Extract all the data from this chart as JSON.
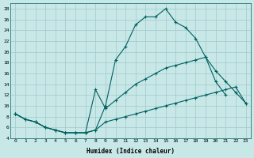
{
  "xlabel": "Humidex (Indice chaleur)",
  "bg_color": "#c8e8e8",
  "line_color": "#006060",
  "grid_color": "#a0c8c8",
  "xlim": [
    -0.5,
    23.5
  ],
  "ylim": [
    4,
    29
  ],
  "yticks": [
    4,
    6,
    8,
    10,
    12,
    14,
    16,
    18,
    20,
    22,
    24,
    26,
    28
  ],
  "xticks": [
    0,
    1,
    2,
    3,
    4,
    5,
    6,
    7,
    8,
    9,
    10,
    11,
    12,
    13,
    14,
    15,
    16,
    17,
    18,
    19,
    20,
    21,
    22,
    23
  ],
  "xtick_labels": [
    "0",
    "1",
    "2",
    "3",
    "4",
    "5",
    "6",
    "7",
    "8",
    "9",
    "10",
    "11",
    "12",
    "13",
    "14",
    "15",
    "16",
    "17",
    "18",
    "19",
    "20",
    "21",
    "22",
    "23"
  ],
  "curve_top_x": [
    0,
    1,
    2,
    3,
    4,
    5,
    6,
    7,
    8,
    9,
    10,
    11,
    12,
    13,
    14,
    15,
    16,
    17,
    18,
    19,
    20,
    21
  ],
  "curve_top_y": [
    8.5,
    7.5,
    7.0,
    6.0,
    5.5,
    5.0,
    5.0,
    5.0,
    5.5,
    10.0,
    18.5,
    21.0,
    25.0,
    26.5,
    26.5,
    28.0,
    25.5,
    24.5,
    22.5,
    19.0,
    14.5,
    12.0
  ],
  "curve_mid_x": [
    0,
    1,
    2,
    3,
    4,
    5,
    6,
    7,
    8,
    9,
    10,
    11,
    12,
    13,
    14,
    15,
    16,
    17,
    18,
    19,
    20,
    21,
    22,
    23
  ],
  "curve_mid_y": [
    8.5,
    7.5,
    7.0,
    6.0,
    5.5,
    5.0,
    5.0,
    5.0,
    13.0,
    9.5,
    11.0,
    12.5,
    14.0,
    15.0,
    16.0,
    17.0,
    17.5,
    18.0,
    18.5,
    19.0,
    16.5,
    14.5,
    12.5,
    10.5
  ],
  "curve_bot_x": [
    0,
    1,
    2,
    3,
    4,
    5,
    6,
    7,
    8,
    9,
    10,
    11,
    12,
    13,
    14,
    15,
    16,
    17,
    18,
    19,
    20,
    21,
    22,
    23
  ],
  "curve_bot_y": [
    8.5,
    7.5,
    7.0,
    6.0,
    5.5,
    5.0,
    5.0,
    5.0,
    5.5,
    7.0,
    7.5,
    8.0,
    8.5,
    9.0,
    9.5,
    10.0,
    10.5,
    11.0,
    11.5,
    12.0,
    12.5,
    13.0,
    13.5,
    10.5
  ]
}
